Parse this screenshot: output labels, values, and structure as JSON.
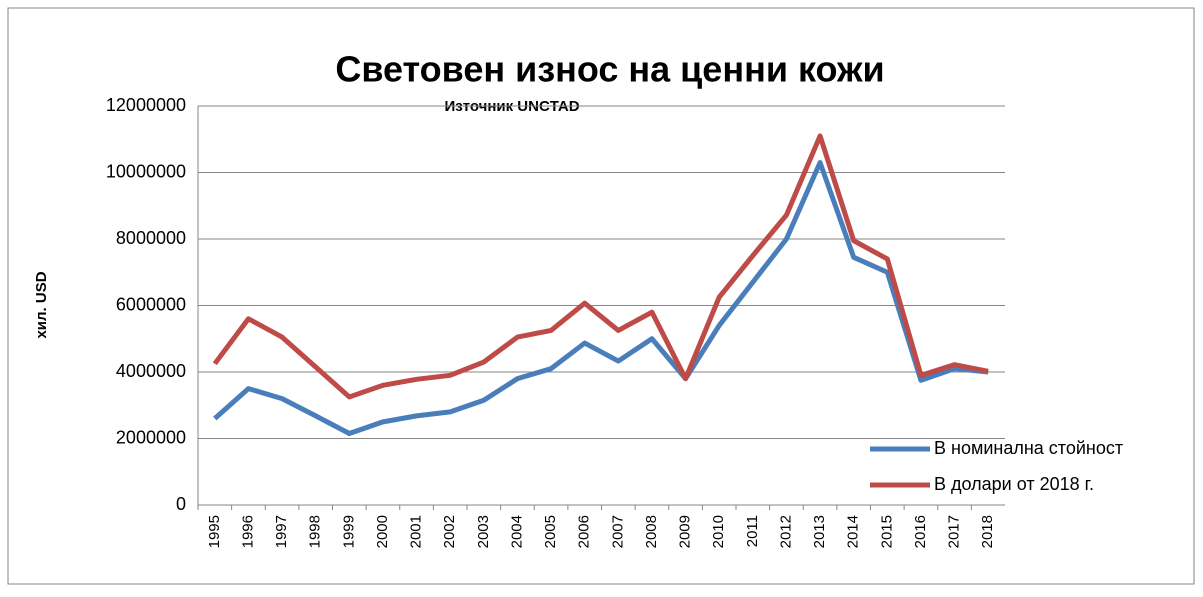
{
  "chart_data": {
    "type": "line",
    "title": "Световен износ на ценни кожи",
    "subtitle": "Източник UNCTAD",
    "y_label": "хил. USD",
    "categories": [
      "1995",
      "1996",
      "1997",
      "1998",
      "1999",
      "2000",
      "2001",
      "2002",
      "2003",
      "2004",
      "2005",
      "2006",
      "2007",
      "2008",
      "2009",
      "2010",
      "2011",
      "2012",
      "2013",
      "2014",
      "2015",
      "2016",
      "2017",
      "2018"
    ],
    "series": [
      {
        "name": "В номинална стойност",
        "color": "#4a7ebb",
        "values": [
          2600000,
          3500000,
          3200000,
          2680000,
          2150000,
          2500000,
          2680000,
          2800000,
          3150000,
          3800000,
          4100000,
          4870000,
          4330000,
          5000000,
          3800000,
          5400000,
          6700000,
          8000000,
          10300000,
          7450000,
          7000000,
          3750000,
          4100000,
          4000000
        ]
      },
      {
        "name": "В долари от 2018 г.",
        "color": "#be4b48",
        "values": [
          4250000,
          5600000,
          5050000,
          4150000,
          3250000,
          3600000,
          3780000,
          3900000,
          4300000,
          5050000,
          5250000,
          6070000,
          5250000,
          5800000,
          3800000,
          6250000,
          7500000,
          8720000,
          11100000,
          7950000,
          7400000,
          3900000,
          4220000,
          4020000
        ]
      }
    ],
    "ylim": [
      0,
      12000000
    ],
    "yticks": [
      0,
      2000000,
      4000000,
      6000000,
      8000000,
      10000000,
      12000000
    ],
    "grid": true,
    "legend": "lower right"
  }
}
